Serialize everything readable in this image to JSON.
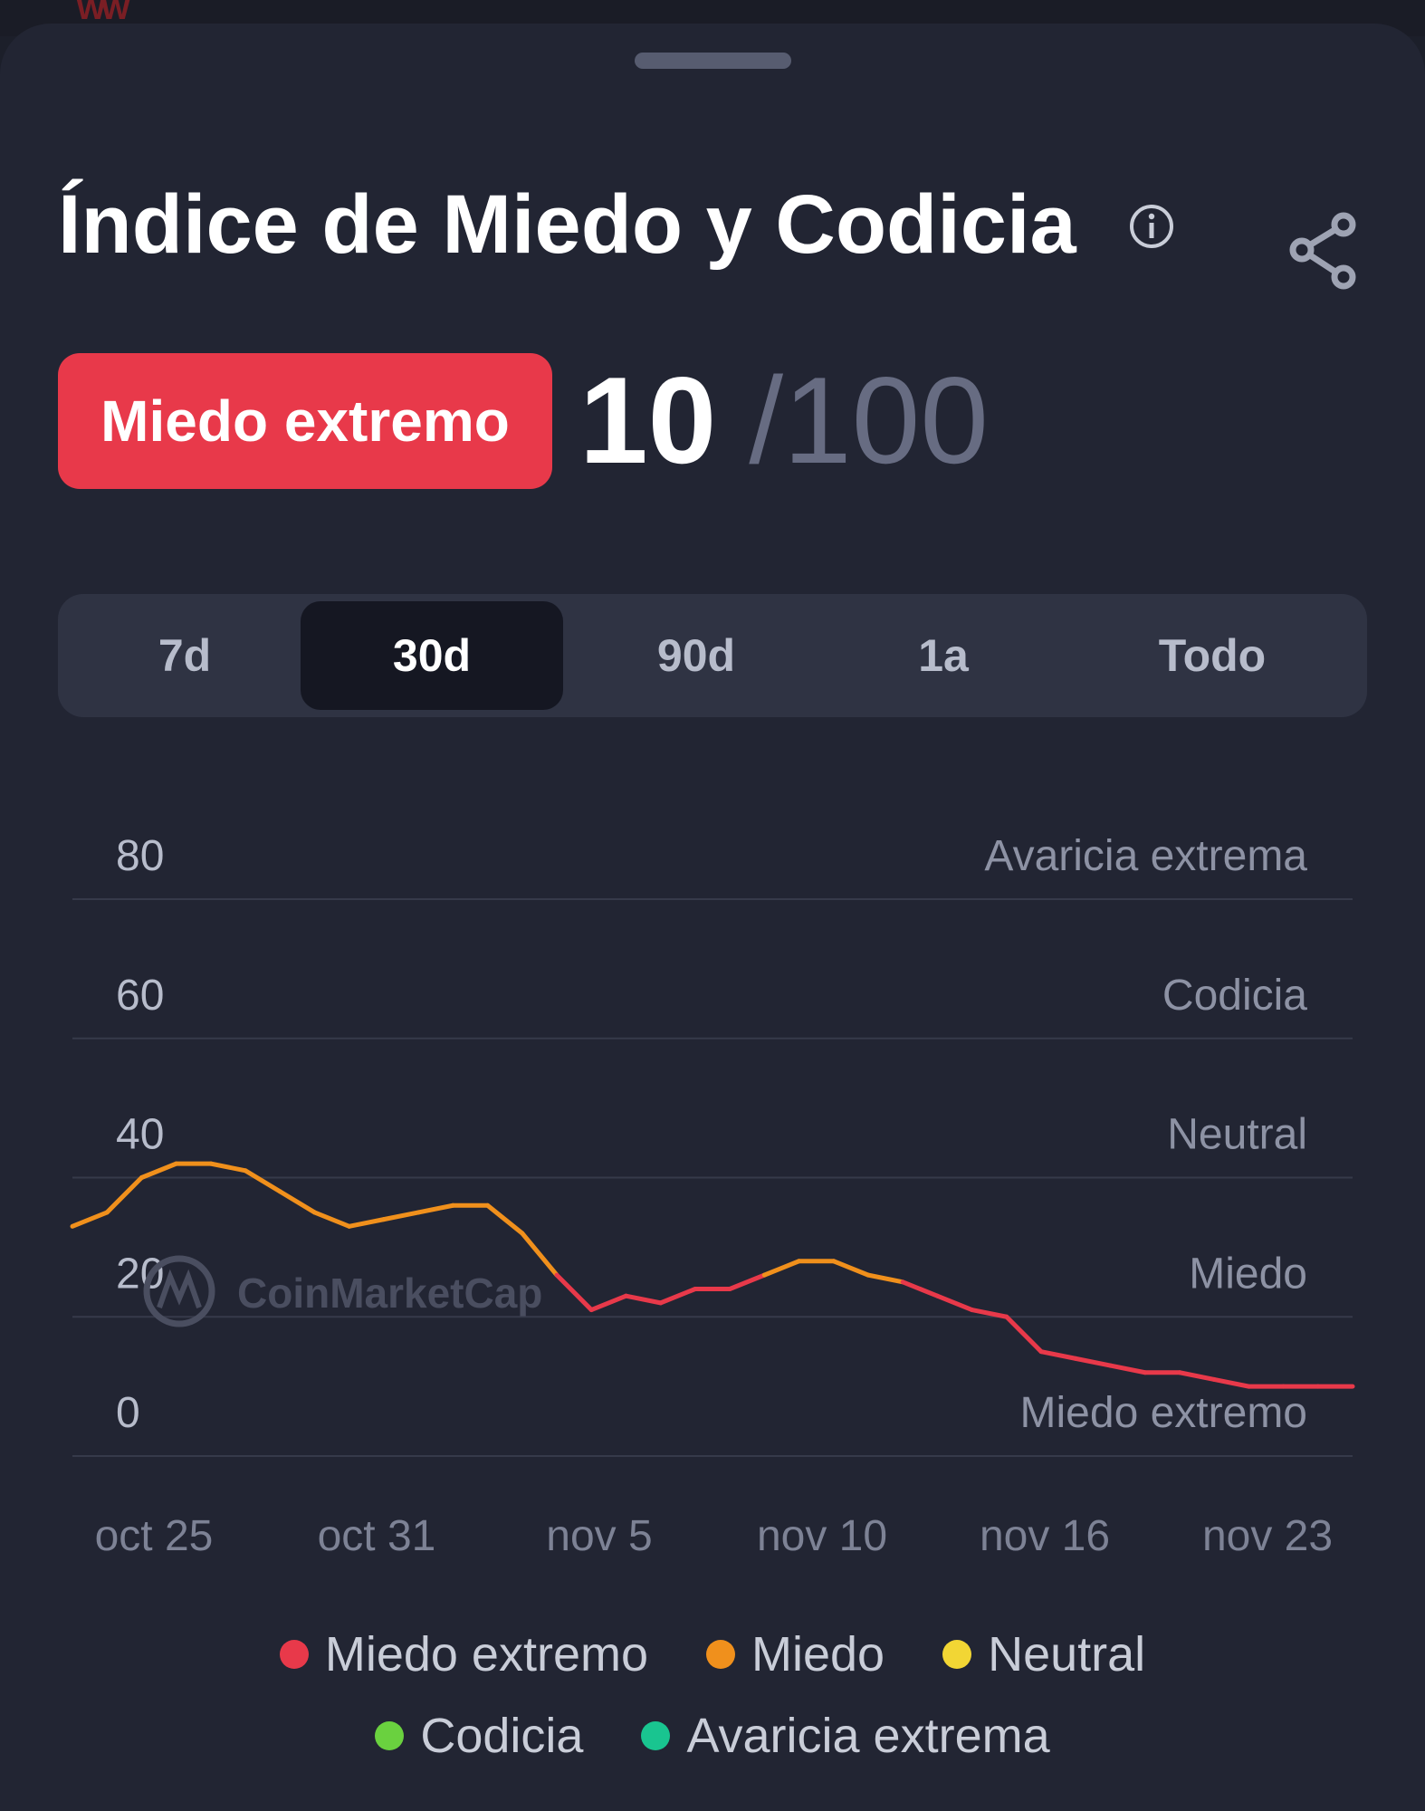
{
  "header": {
    "title": "Índice de Miedo y Codicia",
    "info_icon": "info-icon",
    "share_icon": "share-icon"
  },
  "status": {
    "label": "Miedo extremo",
    "value": "10",
    "max": "/100",
    "color": "#e8394a"
  },
  "tabs": [
    {
      "label": "7d",
      "active": false
    },
    {
      "label": "30d",
      "active": true
    },
    {
      "label": "90d",
      "active": false
    },
    {
      "label": "1a",
      "active": false
    },
    {
      "label": "Todo",
      "active": false
    }
  ],
  "chart_data": {
    "type": "line",
    "ylim": [
      0,
      80
    ],
    "yticks": [
      0,
      20,
      40,
      60,
      80
    ],
    "ytick_labels": [
      "0",
      "20",
      "40",
      "60",
      "80"
    ],
    "zones": [
      {
        "y": 80,
        "label": "Avaricia extrema"
      },
      {
        "y": 60,
        "label": "Codicia"
      },
      {
        "y": 40,
        "label": "Neutral"
      },
      {
        "y": 20,
        "label": "Miedo"
      },
      {
        "y": 0,
        "label": "Miedo extremo"
      }
    ],
    "xtick_labels": [
      "oct 25",
      "oct 31",
      "nov 5",
      "nov 10",
      "nov 16",
      "nov 23"
    ],
    "grid": true,
    "watermark": "CoinMarketCap",
    "series": [
      {
        "values": [
          33,
          35,
          40,
          42,
          42,
          41,
          38,
          35,
          33,
          34,
          35,
          36,
          36,
          32,
          26,
          21,
          23,
          22,
          24,
          24,
          26,
          28,
          28,
          26,
          25,
          23,
          21,
          20,
          15,
          14,
          13,
          12,
          12,
          11,
          10,
          10,
          10,
          10
        ]
      }
    ],
    "thresholds": [
      {
        "max": 25,
        "color": "#e8394a"
      },
      {
        "max": 46,
        "color": "#f0901c"
      },
      {
        "max": 55,
        "color": "#f2d634"
      },
      {
        "max": 75,
        "color": "#6ad13f"
      },
      {
        "max": 100,
        "color": "#19c590"
      }
    ]
  },
  "legend": {
    "row1": [
      {
        "label": "Miedo extremo",
        "color": "#e8394a"
      },
      {
        "label": "Miedo",
        "color": "#f0901c"
      },
      {
        "label": "Neutral",
        "color": "#f2d634"
      }
    ],
    "row2": [
      {
        "label": "Codicia",
        "color": "#6ad13f"
      },
      {
        "label": "Avaricia extrema",
        "color": "#19c590"
      }
    ]
  }
}
